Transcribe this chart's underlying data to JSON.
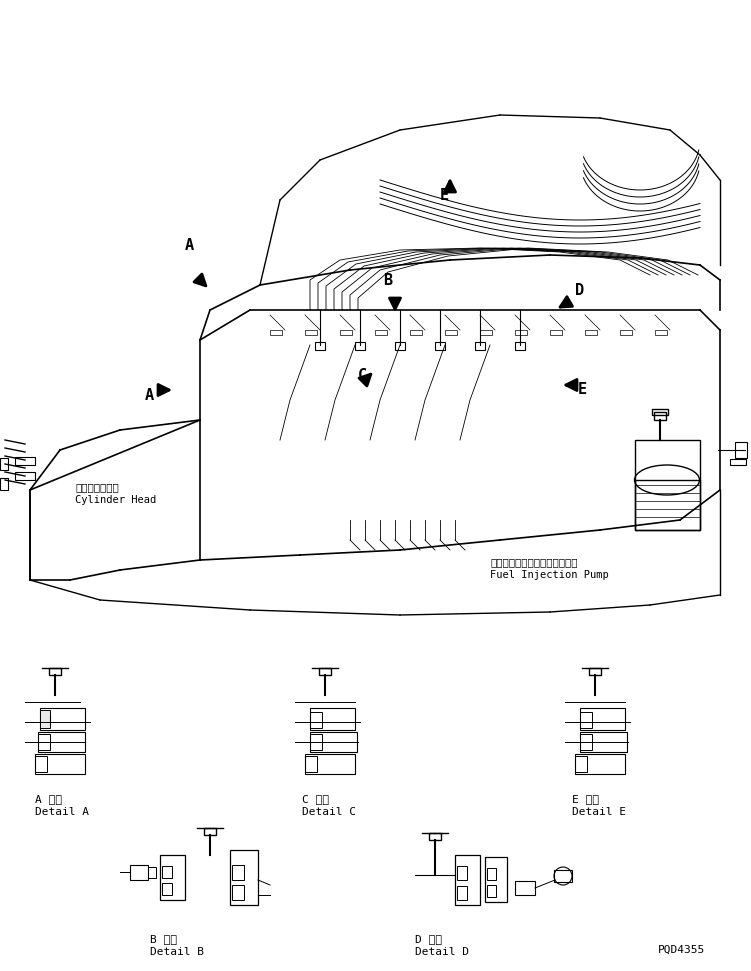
{
  "title": "",
  "bg_color": "#ffffff",
  "line_color": "#000000",
  "fig_width": 7.51,
  "fig_height": 9.71,
  "dpi": 100,
  "part_code": "PQD4355",
  "labels": {
    "A_detail_jp": "A 詳細",
    "A_detail_en": "Detail A",
    "B_detail_jp": "B 詳細",
    "B_detail_en": "Detail B",
    "C_detail_jp": "C 詳細",
    "C_detail_en": "Detail C",
    "D_detail_jp": "D 詳細",
    "D_detail_en": "Detail D",
    "E_detail_jp": "E 詳細",
    "E_detail_en": "Detail E",
    "cylinder_jp": "シリンダヘッド",
    "cylinder_en": "Cylinder Head",
    "pump_jp": "フェルインジェクションポンプ",
    "pump_en": "Fuel Injection Pump"
  },
  "arrow_labels": [
    "A",
    "B",
    "C",
    "D",
    "E"
  ]
}
